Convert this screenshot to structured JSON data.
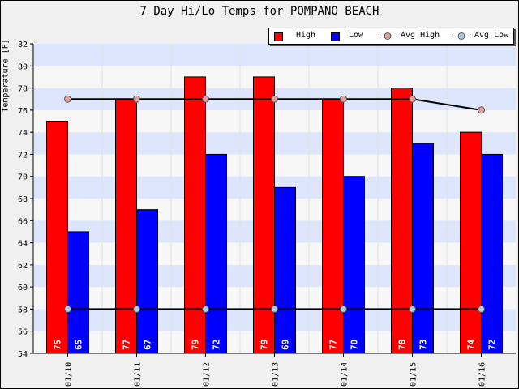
{
  "chart_data": {
    "type": "bar",
    "title": "7 Day Hi/Lo Temps for POMPANO BEACH",
    "xlabel": "",
    "ylabel": "Temperature [F]",
    "ylim": [
      54,
      82
    ],
    "yticks": [
      54,
      56,
      58,
      60,
      62,
      64,
      66,
      68,
      70,
      72,
      74,
      76,
      78,
      80,
      82
    ],
    "categories": [
      "01/10",
      "01/11",
      "01/12",
      "01/13",
      "01/14",
      "01/15",
      "01/16"
    ],
    "series": [
      {
        "name": "High",
        "kind": "bar",
        "color": "#ff0000",
        "values": [
          75,
          77,
          79,
          79,
          77,
          78,
          74
        ]
      },
      {
        "name": "Low",
        "kind": "bar",
        "color": "#0000ff",
        "values": [
          65,
          67,
          72,
          69,
          70,
          73,
          72
        ]
      },
      {
        "name": "Avg High",
        "kind": "line",
        "color": "#000000",
        "marker_color": "#e0a0a0",
        "values": [
          77,
          77,
          77,
          77,
          77,
          77,
          76
        ]
      },
      {
        "name": "Avg Low",
        "kind": "line",
        "color": "#000000",
        "marker_color": "#a8d0e0",
        "values": [
          58,
          58,
          58,
          58,
          58,
          58,
          58
        ]
      }
    ],
    "data_labels": true,
    "grid": true,
    "legend_position": "top-right"
  }
}
